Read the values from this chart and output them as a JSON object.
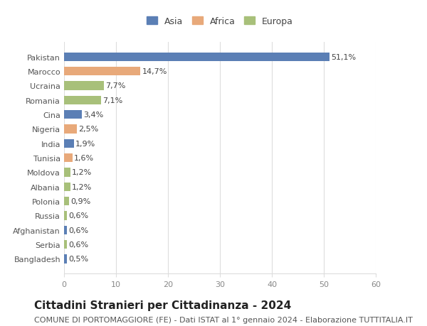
{
  "categories": [
    "Bangladesh",
    "Serbia",
    "Afghanistan",
    "Russia",
    "Polonia",
    "Albania",
    "Moldova",
    "Tunisia",
    "India",
    "Nigeria",
    "Cina",
    "Romania",
    "Ucraina",
    "Marocco",
    "Pakistan"
  ],
  "values": [
    0.5,
    0.6,
    0.6,
    0.6,
    0.9,
    1.2,
    1.2,
    1.6,
    1.9,
    2.5,
    3.4,
    7.1,
    7.7,
    14.7,
    51.1
  ],
  "labels": [
    "0,5%",
    "0,6%",
    "0,6%",
    "0,6%",
    "0,9%",
    "1,2%",
    "1,2%",
    "1,6%",
    "1,9%",
    "2,5%",
    "3,4%",
    "7,1%",
    "7,7%",
    "14,7%",
    "51,1%"
  ],
  "colors": [
    "#5b7fb5",
    "#a8c07a",
    "#5b7fb5",
    "#a8c07a",
    "#a8c07a",
    "#a8c07a",
    "#a8c07a",
    "#e8a97a",
    "#5b7fb5",
    "#e8a97a",
    "#5b7fb5",
    "#a8c07a",
    "#a8c07a",
    "#e8a97a",
    "#5b7fb5"
  ],
  "continents": [
    "Asia",
    "Europa",
    "Asia",
    "Europa",
    "Europa",
    "Europa",
    "Europa",
    "Africa",
    "Asia",
    "Africa",
    "Asia",
    "Europa",
    "Europa",
    "Africa",
    "Asia"
  ],
  "legend_labels": [
    "Asia",
    "Africa",
    "Europa"
  ],
  "legend_colors": [
    "#5b7fb5",
    "#e8a97a",
    "#a8c07a"
  ],
  "xlim": [
    0,
    60
  ],
  "xticks": [
    0,
    10,
    20,
    30,
    40,
    50,
    60
  ],
  "title": "Cittadini Stranieri per Cittadinanza - 2024",
  "subtitle": "COMUNE DI PORTOMAGGIORE (FE) - Dati ISTAT al 1° gennaio 2024 - Elaborazione TUTTITALIA.IT",
  "bg_color": "#ffffff",
  "grid_color": "#dddddd",
  "bar_height": 0.6,
  "title_fontsize": 11,
  "subtitle_fontsize": 8,
  "label_fontsize": 8,
  "tick_fontsize": 8
}
